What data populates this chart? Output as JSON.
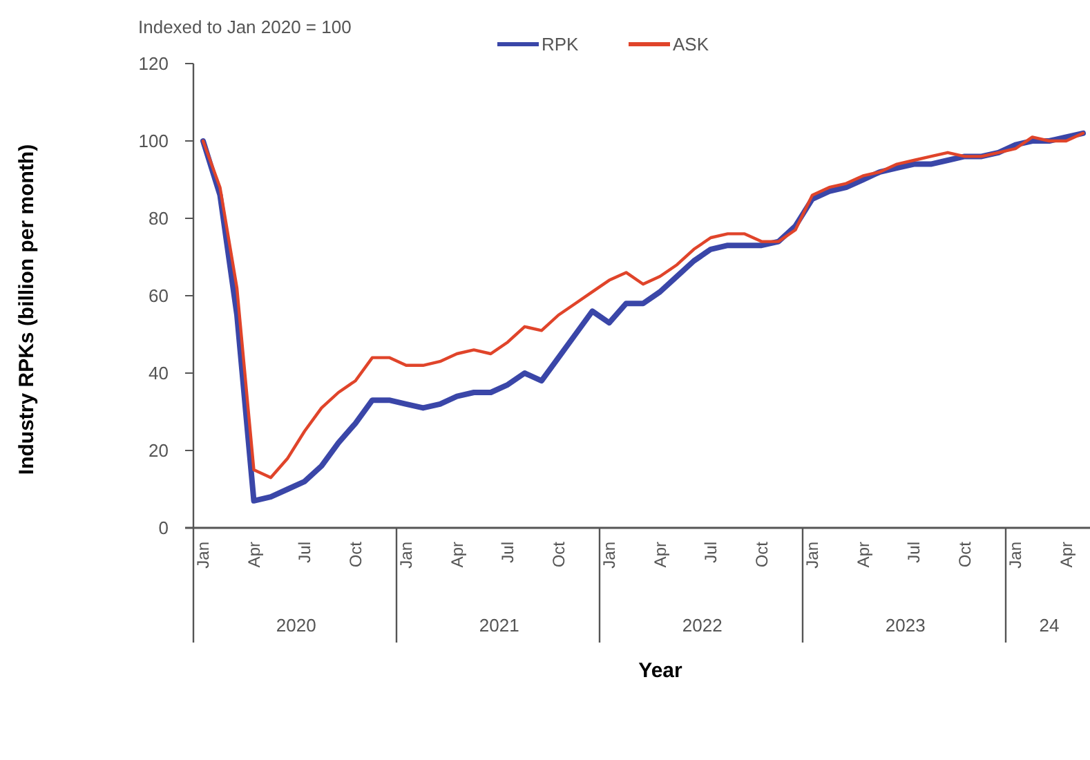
{
  "chart_data": {
    "type": "line",
    "subtitle": "Indexed to Jan 2020 = 100",
    "xlabel": "Year",
    "ylabel": "Industry RPKs (billion per month)",
    "categories": [
      "Jan",
      null,
      null,
      "Apr",
      null,
      null,
      "Jul",
      null,
      null,
      "Oct",
      null,
      null,
      "Jan",
      null,
      null,
      "Apr",
      null,
      null,
      "Jul",
      null,
      null,
      "Oct",
      null,
      null,
      "Jan",
      null,
      null,
      "Apr",
      null,
      null,
      "Jul",
      null,
      null,
      "Oct",
      null,
      null,
      "Jan",
      null,
      null,
      "Apr",
      null,
      null,
      "Jul",
      null,
      null,
      "Oct",
      null,
      null,
      "Jan",
      null,
      null,
      "Apr",
      null
    ],
    "annotations": [
      "2020",
      "2021",
      "2022",
      "2023",
      "24"
    ],
    "series": [
      {
        "name": "RPK",
        "color": "#3a46a8",
        "values": [
          100,
          86,
          55,
          7,
          8,
          10,
          12,
          16,
          22,
          27,
          33,
          33,
          32,
          31,
          32,
          34,
          35,
          35,
          37,
          40,
          38,
          44,
          50,
          56,
          53,
          58,
          58,
          61,
          65,
          69,
          72,
          73,
          73,
          73,
          74,
          78,
          85,
          87,
          88,
          90,
          92,
          93,
          94,
          94,
          95,
          96,
          96,
          97,
          99,
          100,
          100,
          101,
          102
        ]
      },
      {
        "name": "ASK",
        "color": "#e0442a",
        "values": [
          100,
          88,
          62,
          15,
          13,
          18,
          25,
          31,
          35,
          38,
          44,
          44,
          42,
          42,
          43,
          45,
          46,
          45,
          48,
          52,
          51,
          55,
          58,
          61,
          64,
          66,
          63,
          65,
          68,
          72,
          75,
          76,
          76,
          74,
          74,
          77,
          86,
          88,
          89,
          91,
          92,
          94,
          95,
          96,
          97,
          96,
          96,
          97,
          98,
          101,
          100,
          100,
          102
        ]
      }
    ],
    "ylim": [
      0,
      120
    ],
    "yticks": [
      0,
      20,
      40,
      60,
      80,
      100,
      120
    ],
    "grid": false,
    "legend": "top",
    "line_style": "solid"
  }
}
